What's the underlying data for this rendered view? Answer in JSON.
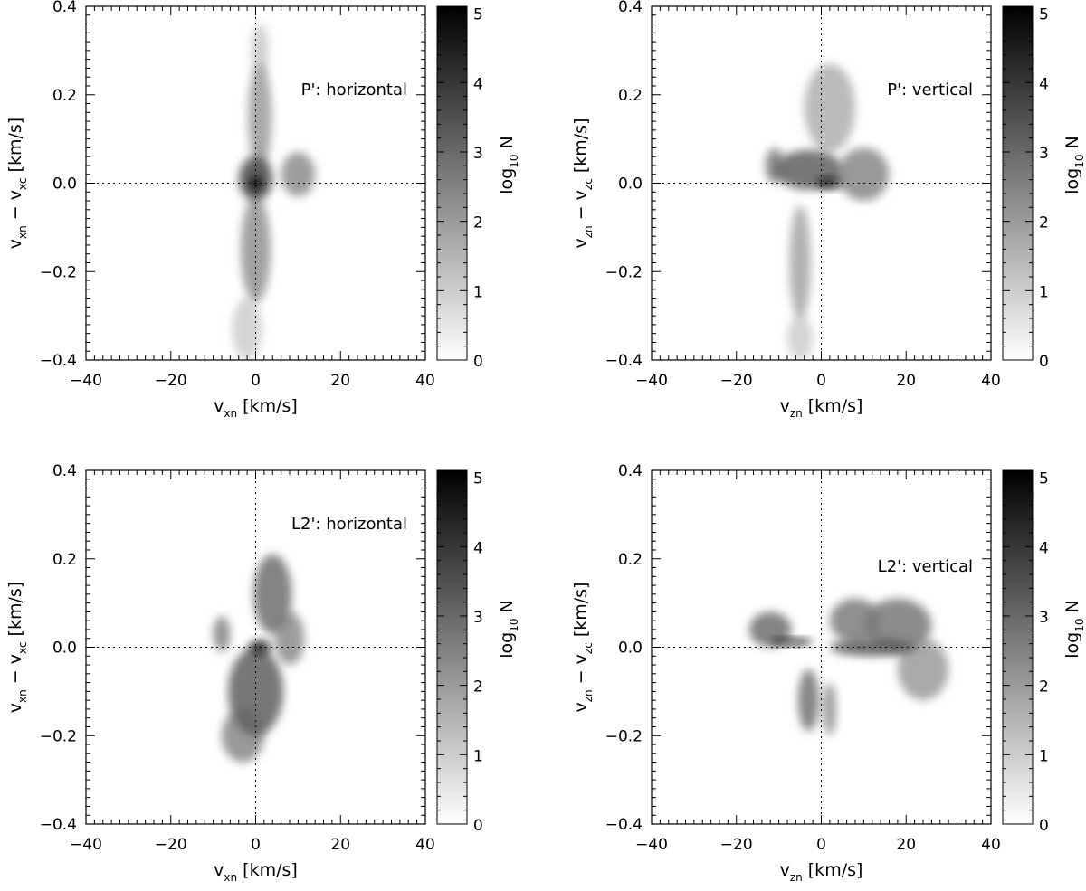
{
  "chart_data": [
    {
      "type": "heatmap",
      "annotation": "P': horizontal",
      "xlabel": {
        "base": "v",
        "sub": "xn",
        "rest": " [km/s]"
      },
      "ylabel": {
        "a": "v",
        "asub": "xn",
        "mid": " − v",
        "bsub": "xc",
        "rest": " [km/s]"
      },
      "xlim": [
        -40,
        40
      ],
      "ylim": [
        -0.4,
        0.4
      ],
      "xticks": [
        "−40",
        "−20",
        "0",
        "20",
        "40"
      ],
      "yticks": [
        "−0.4",
        "−0.2",
        "0.0",
        "0.2",
        "0.4"
      ],
      "reference_lines": {
        "x": 0,
        "y": 0,
        "style": "dotted"
      },
      "colorbar": {
        "label": "log",
        "label_sub": "10",
        "label_rest": " N",
        "range": [
          0,
          5.1
        ],
        "ticks": [
          "0",
          "1",
          "2",
          "3",
          "4",
          "5"
        ],
        "colormap": "gray_r"
      },
      "density_blobs": [
        {
          "x": 0,
          "y": 0.0,
          "sx": 1.3,
          "sy": 0.018,
          "level": 5.0
        },
        {
          "x": 0,
          "y": 0.01,
          "sx": 4.0,
          "sy": 0.05,
          "level": 3.6
        },
        {
          "x": 10,
          "y": 0.02,
          "sx": 4.0,
          "sy": 0.05,
          "level": 2.3
        },
        {
          "x": 0,
          "y": -0.15,
          "sx": 3.5,
          "sy": 0.12,
          "level": 2.2
        },
        {
          "x": 1,
          "y": 0.15,
          "sx": 2.8,
          "sy": 0.12,
          "level": 2.0
        },
        {
          "x": 1,
          "y": 0.3,
          "sx": 2.0,
          "sy": 0.06,
          "level": 1.1
        },
        {
          "x": -2,
          "y": -0.33,
          "sx": 3.5,
          "sy": 0.07,
          "level": 1.0
        }
      ]
    },
    {
      "type": "heatmap",
      "annotation": "P': vertical",
      "xlabel": {
        "base": "v",
        "sub": "zn",
        "rest": " [km/s]"
      },
      "ylabel": {
        "a": "v",
        "asub": "zn",
        "mid": " − v",
        "bsub": "zc",
        "rest": " [km/s]"
      },
      "xlim": [
        -40,
        40
      ],
      "ylim": [
        -0.4,
        0.4
      ],
      "xticks": [
        "−40",
        "−20",
        "0",
        "20",
        "40"
      ],
      "yticks": [
        "−0.4",
        "−0.2",
        "0.0",
        "0.2",
        "0.4"
      ],
      "reference_lines": {
        "x": 0,
        "y": 0,
        "style": "dotted"
      },
      "colorbar": {
        "label": "log",
        "label_sub": "10",
        "label_rest": " N",
        "range": [
          0,
          5.1
        ],
        "ticks": [
          "0",
          "1",
          "2",
          "3",
          "4",
          "5"
        ],
        "colormap": "gray_r"
      },
      "density_blobs": [
        {
          "x": 2,
          "y": 0.0,
          "sx": 3.0,
          "sy": 0.012,
          "level": 4.8
        },
        {
          "x": -3,
          "y": 0.03,
          "sx": 8.0,
          "sy": 0.045,
          "level": 3.2
        },
        {
          "x": 10,
          "y": 0.02,
          "sx": 6.0,
          "sy": 0.06,
          "level": 2.4
        },
        {
          "x": -11,
          "y": 0.04,
          "sx": 2.2,
          "sy": 0.04,
          "level": 2.6
        },
        {
          "x": 2,
          "y": 0.17,
          "sx": 6.0,
          "sy": 0.1,
          "level": 1.6
        },
        {
          "x": -5,
          "y": -0.18,
          "sx": 2.5,
          "sy": 0.13,
          "level": 1.8
        },
        {
          "x": -5,
          "y": -0.35,
          "sx": 3.0,
          "sy": 0.05,
          "level": 1.0
        }
      ]
    },
    {
      "type": "heatmap",
      "annotation": "L2': horizontal",
      "xlabel": {
        "base": "v",
        "sub": "xn",
        "rest": " [km/s]"
      },
      "ylabel": {
        "a": "v",
        "asub": "xn",
        "mid": " − v",
        "bsub": "xc",
        "rest": " [km/s]"
      },
      "xlim": [
        -40,
        40
      ],
      "ylim": [
        -0.4,
        0.4
      ],
      "xticks": [
        "−40",
        "−20",
        "0",
        "20",
        "40"
      ],
      "yticks": [
        "−0.4",
        "−0.2",
        "0.0",
        "0.2",
        "0.4"
      ],
      "reference_lines": {
        "x": 0,
        "y": 0,
        "style": "dotted"
      },
      "colorbar": {
        "label": "log",
        "label_sub": "10",
        "label_rest": " N",
        "range": [
          0,
          5.1
        ],
        "ticks": [
          "0",
          "1",
          "2",
          "3",
          "4",
          "5"
        ],
        "colormap": "gray_r"
      },
      "density_blobs": [
        {
          "x": 1,
          "y": 0.0,
          "sx": 2.5,
          "sy": 0.015,
          "level": 4.9
        },
        {
          "x": 0,
          "y": -0.1,
          "sx": 6.5,
          "sy": 0.1,
          "level": 3.2
        },
        {
          "x": 4,
          "y": 0.12,
          "sx": 4.5,
          "sy": 0.09,
          "level": 2.9
        },
        {
          "x": -3,
          "y": -0.2,
          "sx": 5.0,
          "sy": 0.06,
          "level": 2.4
        },
        {
          "x": -8,
          "y": 0.03,
          "sx": 2.0,
          "sy": 0.04,
          "level": 2.5
        },
        {
          "x": 8,
          "y": 0.02,
          "sx": 3.5,
          "sy": 0.06,
          "level": 2.3
        }
      ]
    },
    {
      "type": "heatmap",
      "annotation": "L2': vertical",
      "xlabel": {
        "base": "v",
        "sub": "zn",
        "rest": " [km/s]"
      },
      "ylabel": {
        "a": "v",
        "asub": "zn",
        "mid": " − v",
        "bsub": "zc",
        "rest": " [km/s]"
      },
      "xlim": [
        -40,
        40
      ],
      "ylim": [
        -0.4,
        0.4
      ],
      "xticks": [
        "−40",
        "−20",
        "0",
        "20",
        "40"
      ],
      "yticks": [
        "−0.4",
        "−0.2",
        "0.0",
        "0.2",
        "0.4"
      ],
      "reference_lines": {
        "x": 0,
        "y": 0,
        "style": "dotted"
      },
      "colorbar": {
        "label": "log",
        "label_sub": "10",
        "label_rest": " N",
        "range": [
          0,
          5.1
        ],
        "ticks": [
          "0",
          "1",
          "2",
          "3",
          "4",
          "5"
        ],
        "colormap": "gray_r"
      },
      "density_blobs": [
        {
          "x": -7,
          "y": 0.012,
          "sx": 5.0,
          "sy": 0.008,
          "level": 4.8
        },
        {
          "x": 12,
          "y": 0.0,
          "sx": 10.0,
          "sy": 0.02,
          "level": 3.3
        },
        {
          "x": 18,
          "y": 0.05,
          "sx": 8.0,
          "sy": 0.06,
          "level": 2.7
        },
        {
          "x": 8,
          "y": 0.06,
          "sx": 6.0,
          "sy": 0.05,
          "level": 2.6
        },
        {
          "x": -12,
          "y": 0.04,
          "sx": 5.0,
          "sy": 0.04,
          "level": 2.9
        },
        {
          "x": -3,
          "y": -0.12,
          "sx": 2.5,
          "sy": 0.07,
          "level": 2.8
        },
        {
          "x": 2,
          "y": -0.14,
          "sx": 1.5,
          "sy": 0.06,
          "level": 2.3
        },
        {
          "x": 24,
          "y": -0.05,
          "sx": 6.0,
          "sy": 0.07,
          "level": 2.0
        }
      ]
    }
  ]
}
